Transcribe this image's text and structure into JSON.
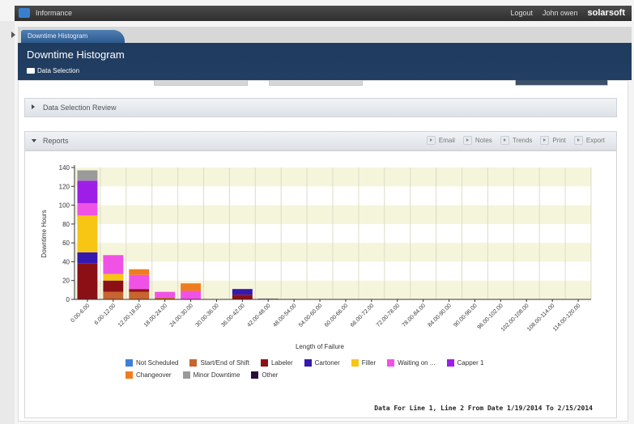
{
  "topbar": {
    "app_name": "Informance",
    "logout": "Logout",
    "user": "John owen",
    "brand": "solarsoft"
  },
  "tab": {
    "label": "Downtime Histogram"
  },
  "header": {
    "title": "Downtime Histogram",
    "data_selection": "Data Selection"
  },
  "panels": {
    "review": {
      "label": "Data Selection Review"
    },
    "reports": {
      "label": "Reports"
    }
  },
  "actions": [
    {
      "label": "Email"
    },
    {
      "label": "Notes"
    },
    {
      "label": "Trends"
    },
    {
      "label": "Print"
    },
    {
      "label": "Export"
    }
  ],
  "footnote": "Data For Line 1, Line 2 From Date 1/19/2014 To 2/15/2014",
  "colors": {
    "header": "#1f3b5e",
    "tab": "#3e6ea4",
    "plot_band": "#f5f5dc"
  },
  "chart_data": {
    "type": "bar",
    "stacked": true,
    "xlabel": "Length of Failure",
    "ylabel": "Downtime Hours",
    "ylim": [
      0,
      140
    ],
    "yticks": [
      0,
      20,
      40,
      60,
      80,
      100,
      120,
      140
    ],
    "grid": true,
    "legend_position": "bottom",
    "categories": [
      "0.00-6.00",
      "6.00-12.00",
      "12.00-18.00",
      "18.00-24.00",
      "24.00-30.00",
      "30.00-36.00",
      "36.00-42.00",
      "42.00-48.00",
      "48.00-54.00",
      "54.00-60.00",
      "60.00-66.00",
      "66.00-72.00",
      "72.00-78.00",
      "78.00-84.00",
      "84.00-90.00",
      "90.00-96.00",
      "96.00-102.00",
      "102.00-108.00",
      "108.00-114.00",
      "114.00-120.00"
    ],
    "series": [
      {
        "name": "Not Scheduled",
        "color": "#3f7fd8",
        "values": [
          0,
          0,
          0,
          0,
          0,
          0,
          0,
          0,
          0,
          0,
          0,
          0,
          0,
          0,
          0,
          0,
          0,
          0,
          0,
          0
        ]
      },
      {
        "name": "Start/End of Shift",
        "color": "#c8642f",
        "values": [
          0,
          8,
          8,
          2,
          0,
          0,
          0,
          0,
          0,
          0,
          0,
          0,
          0,
          0,
          0,
          0,
          0,
          0,
          0,
          0
        ]
      },
      {
        "name": "Labeler",
        "color": "#8b1015",
        "values": [
          38,
          12,
          3,
          0,
          0,
          0,
          5,
          0,
          0,
          0,
          0,
          0,
          0,
          0,
          0,
          0,
          0,
          0,
          0,
          0
        ]
      },
      {
        "name": "Cartoner",
        "color": "#3518b0",
        "values": [
          12,
          0,
          0,
          0,
          0,
          0,
          6,
          0,
          0,
          0,
          0,
          0,
          0,
          0,
          0,
          0,
          0,
          0,
          0,
          0
        ]
      },
      {
        "name": "Filler",
        "color": "#f7c614",
        "values": [
          39,
          7,
          0,
          0,
          0,
          0,
          0,
          0,
          0,
          0,
          0,
          0,
          0,
          0,
          0,
          0,
          0,
          0,
          0,
          0
        ]
      },
      {
        "name": "Waiting on ...",
        "color": "#f052e6",
        "values": [
          13,
          20,
          15,
          6,
          9,
          0,
          0,
          0,
          0,
          0,
          0,
          0,
          0,
          0,
          0,
          0,
          0,
          0,
          0,
          0
        ]
      },
      {
        "name": "Capper 1",
        "color": "#9e1ee8",
        "values": [
          24,
          0,
          0,
          0,
          0,
          0,
          0,
          0,
          0,
          0,
          0,
          0,
          0,
          0,
          0,
          0,
          0,
          0,
          0,
          0
        ]
      },
      {
        "name": "Changeover",
        "color": "#ef7d1f",
        "values": [
          0,
          0,
          6,
          0,
          8,
          0,
          0,
          0,
          0,
          0,
          0,
          0,
          0,
          0,
          0,
          0,
          0,
          0,
          0,
          0
        ]
      },
      {
        "name": "Minor Downtime",
        "color": "#9a9a9a",
        "values": [
          11,
          0,
          0,
          0,
          0,
          0,
          0,
          1,
          0,
          0,
          0,
          0,
          0,
          0,
          0,
          0,
          0,
          0,
          0,
          0
        ]
      },
      {
        "name": "Other",
        "color": "#2a0e3a",
        "values": [
          0,
          0,
          0,
          0,
          0,
          0,
          0,
          0,
          0,
          0,
          0,
          0,
          0,
          0,
          0,
          0,
          0,
          0,
          0,
          0
        ]
      }
    ]
  }
}
